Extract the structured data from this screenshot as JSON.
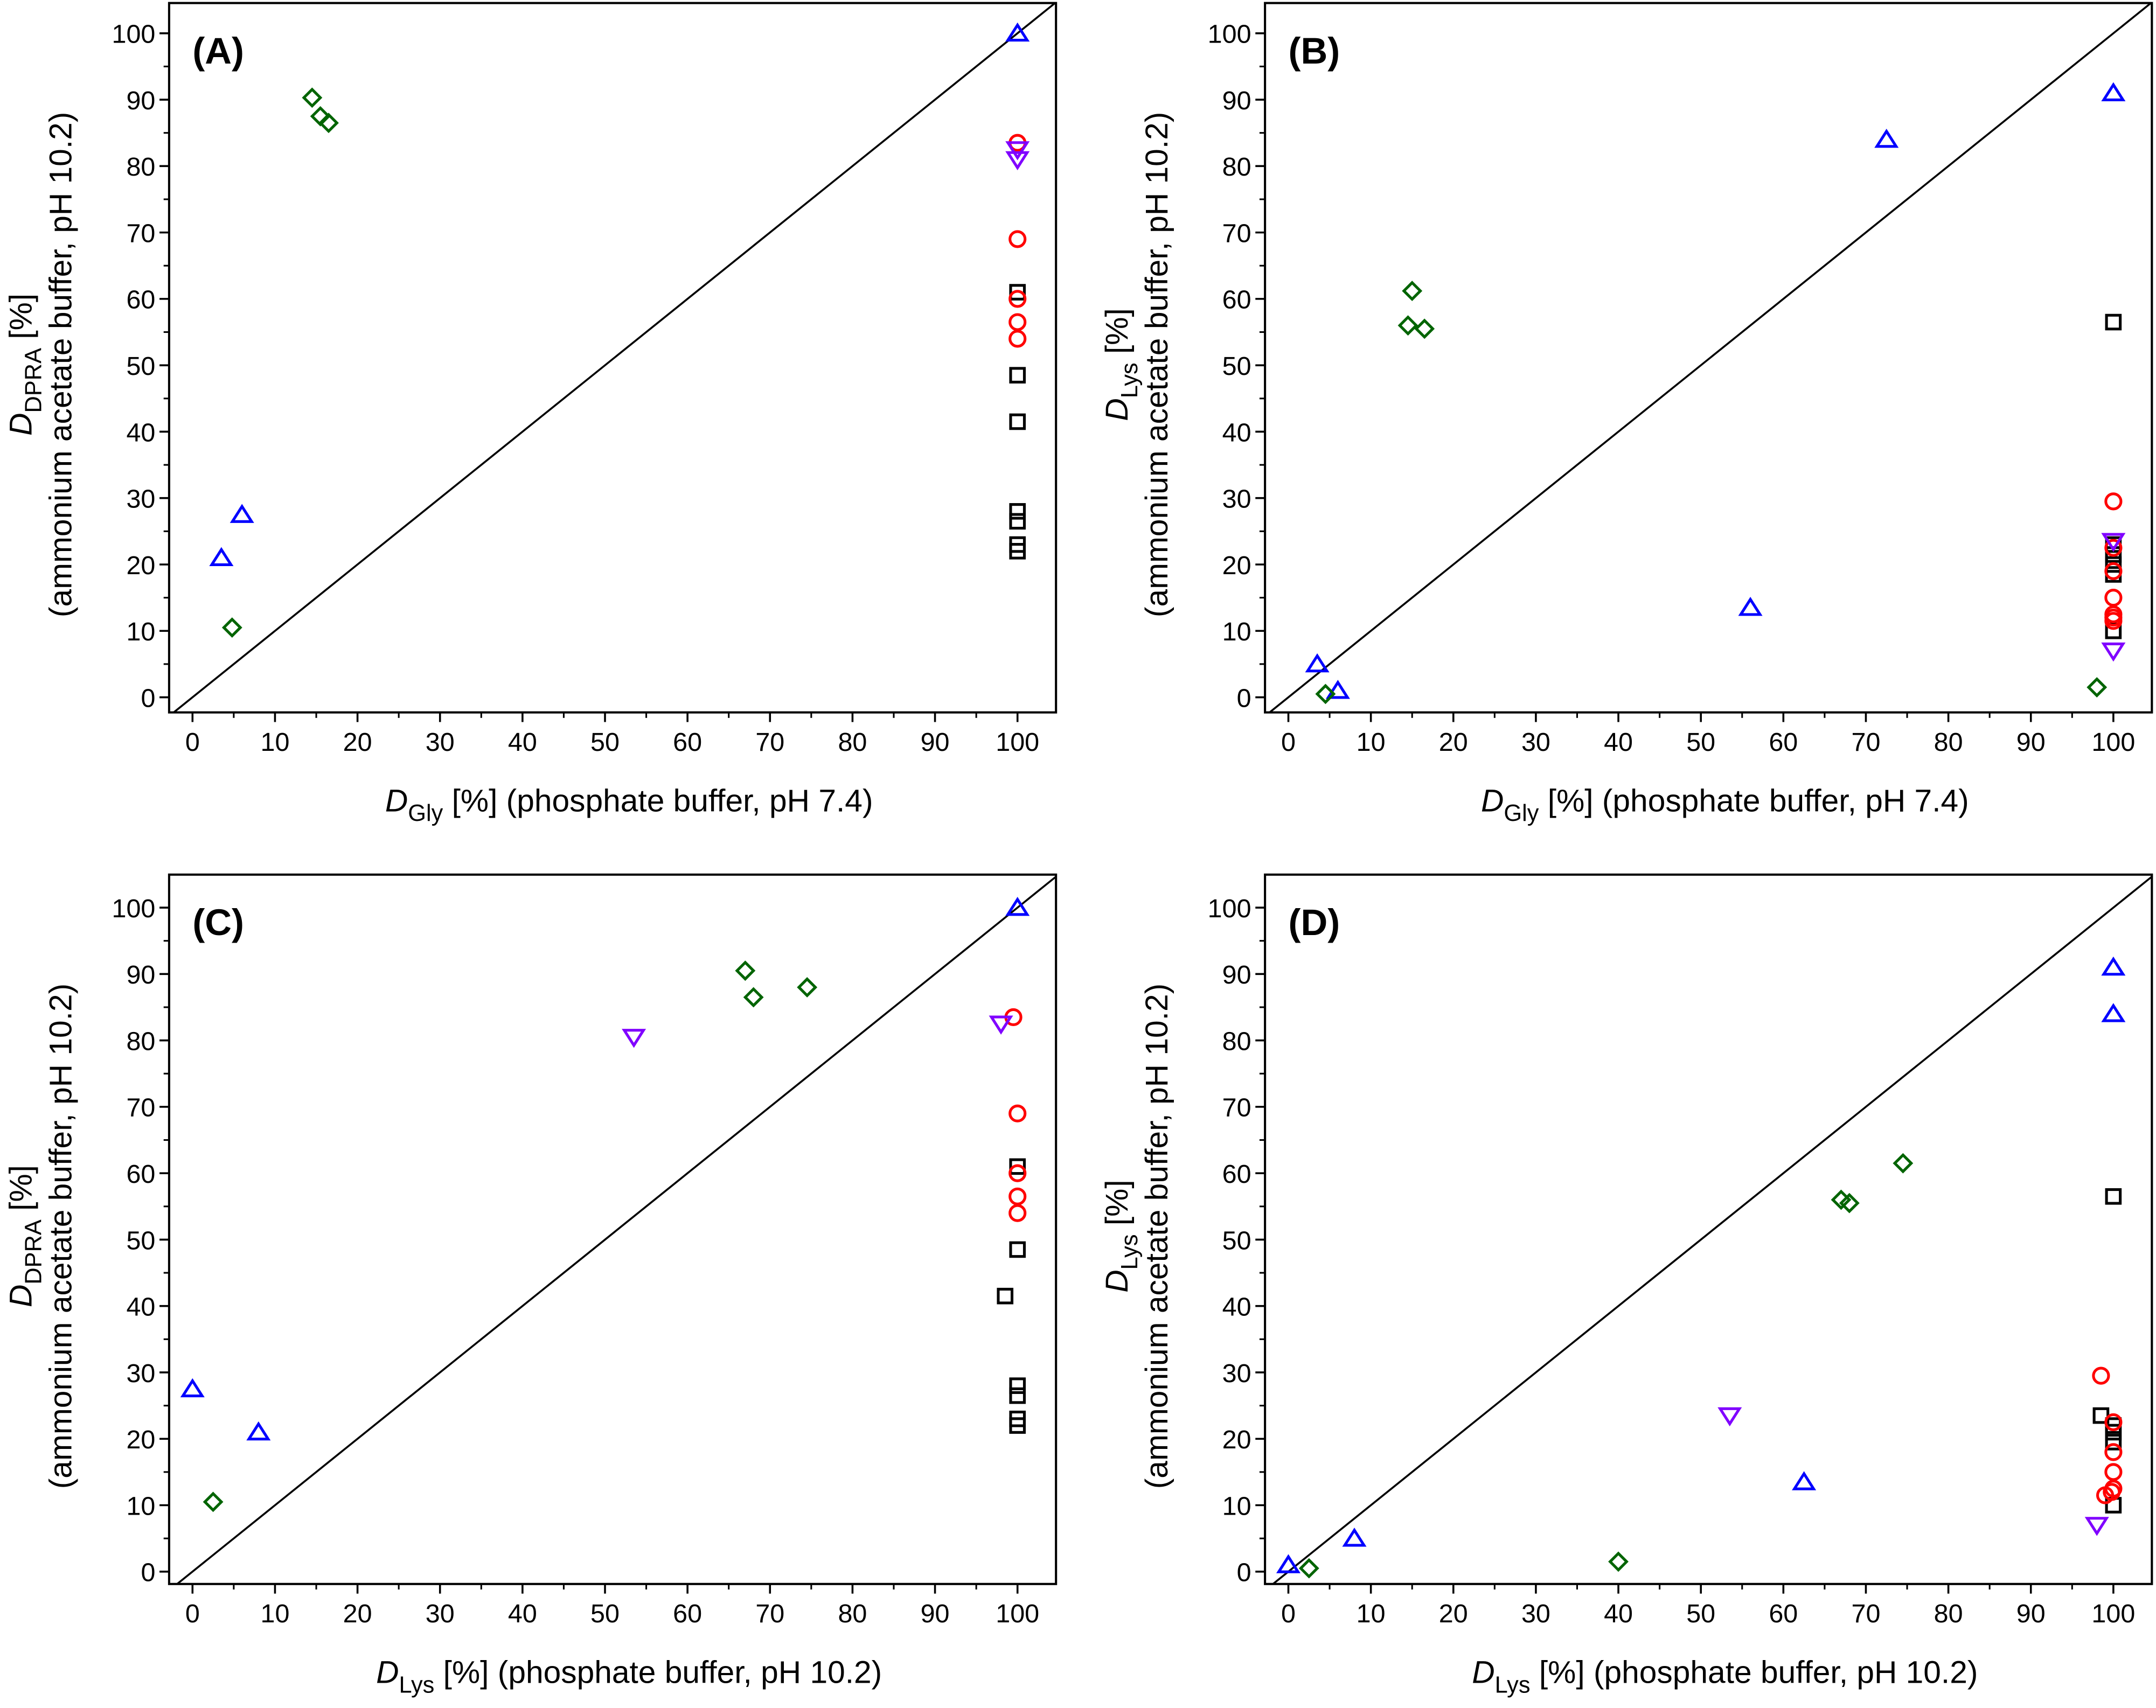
{
  "chart_data": [
    {
      "type": "scatter",
      "panel_label": "(A)",
      "xlabel": {
        "main": "D",
        "sub": "Gly",
        "rest": " [%] (phosphate buffer, pH 7.4)"
      },
      "ylabel": {
        "main": "D",
        "sub": "DPRA",
        "rest": " [%]",
        "line2": "(ammonium acetate buffer, pH 10.2)"
      },
      "xlim": [
        0,
        100
      ],
      "ylim": [
        0,
        100
      ],
      "xticks": [
        "0",
        "10",
        "20",
        "30",
        "40",
        "50",
        "60",
        "70",
        "80",
        "90",
        "100"
      ],
      "yticks": [
        "0",
        "10",
        "20",
        "30",
        "40",
        "50",
        "60",
        "70",
        "80",
        "90",
        "100"
      ],
      "diagonal": true,
      "series": [
        {
          "name": "black-square",
          "marker": "square",
          "color": "#000000",
          "points": [
            [
              100,
              61
            ],
            [
              100,
              48.5
            ],
            [
              100,
              41.5
            ],
            [
              100,
              28
            ],
            [
              100,
              26.5
            ],
            [
              100,
              23
            ],
            [
              100,
              22
            ]
          ]
        },
        {
          "name": "red-circle",
          "marker": "circle",
          "color": "#ff0000",
          "points": [
            [
              100,
              83.5
            ],
            [
              100,
              69
            ],
            [
              100,
              60
            ],
            [
              100,
              56.5
            ],
            [
              100,
              54
            ]
          ]
        },
        {
          "name": "blue-triangle",
          "marker": "triangle-up",
          "color": "#0000ff",
          "points": [
            [
              100,
              100
            ],
            [
              3.5,
              21
            ],
            [
              6,
              27.5
            ]
          ]
        },
        {
          "name": "purple-triangle",
          "marker": "triangle-down",
          "color": "#8000ff",
          "points": [
            [
              100,
              82.5
            ],
            [
              100,
              81
            ]
          ]
        },
        {
          "name": "green-diamond",
          "marker": "diamond",
          "color": "#006400",
          "points": [
            [
              14.5,
              90.3
            ],
            [
              15.5,
              87.5
            ],
            [
              16.5,
              86.5
            ],
            [
              4.8,
              10.5
            ]
          ]
        }
      ]
    },
    {
      "type": "scatter",
      "panel_label": "(B)",
      "xlabel": {
        "main": "D",
        "sub": "Gly",
        "rest": " [%] (phosphate buffer, pH 7.4)"
      },
      "ylabel": {
        "main": "D",
        "sub": "Lys",
        "rest": " [%]",
        "line2": "(ammonium acetate buffer, pH 10.2)"
      },
      "xlim": [
        0,
        100
      ],
      "ylim": [
        0,
        100
      ],
      "xticks": [
        "0",
        "10",
        "20",
        "30",
        "40",
        "50",
        "60",
        "70",
        "80",
        "90",
        "100"
      ],
      "yticks": [
        "0",
        "10",
        "20",
        "30",
        "40",
        "50",
        "60",
        "70",
        "80",
        "90",
        "100"
      ],
      "diagonal": true,
      "series": [
        {
          "name": "black-square",
          "marker": "square",
          "color": "#000000",
          "points": [
            [
              100,
              56.5
            ],
            [
              100,
              23
            ],
            [
              100,
              21.5
            ],
            [
              100,
              20
            ],
            [
              100,
              18.5
            ],
            [
              100,
              10
            ]
          ]
        },
        {
          "name": "red-circle",
          "marker": "circle",
          "color": "#ff0000",
          "points": [
            [
              100,
              29.5
            ],
            [
              100,
              22.5
            ],
            [
              100,
              19
            ],
            [
              100,
              15
            ],
            [
              100,
              12.5
            ],
            [
              100,
              12
            ],
            [
              100,
              11.5
            ]
          ]
        },
        {
          "name": "blue-triangle",
          "marker": "triangle-up",
          "color": "#0000ff",
          "points": [
            [
              100,
              91
            ],
            [
              72.5,
              84
            ],
            [
              56,
              13.5
            ],
            [
              3.5,
              5
            ],
            [
              6,
              1
            ]
          ]
        },
        {
          "name": "purple-triangle",
          "marker": "triangle-down",
          "color": "#8000ff",
          "points": [
            [
              100,
              23.5
            ],
            [
              100,
              7
            ]
          ]
        },
        {
          "name": "green-diamond",
          "marker": "diamond",
          "color": "#006400",
          "points": [
            [
              15,
              61.2
            ],
            [
              14.5,
              56
            ],
            [
              16.5,
              55.5
            ],
            [
              4.5,
              0.5
            ],
            [
              98,
              1.5
            ]
          ]
        }
      ]
    },
    {
      "type": "scatter",
      "panel_label": "(C)",
      "xlabel": {
        "main": "D",
        "sub": "Lys",
        "rest": " [%] (phosphate buffer, pH 10.2)"
      },
      "ylabel": {
        "main": "D",
        "sub": "DPRA",
        "rest": " [%]",
        "line2": "(ammonium acetate buffer, pH 10.2)"
      },
      "xlim": [
        0,
        100
      ],
      "ylim": [
        0,
        100
      ],
      "xticks": [
        "0",
        "10",
        "20",
        "30",
        "40",
        "50",
        "60",
        "70",
        "80",
        "90",
        "100"
      ],
      "yticks": [
        "0",
        "10",
        "20",
        "30",
        "40",
        "50",
        "60",
        "70",
        "80",
        "90",
        "100"
      ],
      "diagonal": true,
      "series": [
        {
          "name": "black-square",
          "marker": "square",
          "color": "#000000",
          "points": [
            [
              100,
              61
            ],
            [
              100,
              48.5
            ],
            [
              98.5,
              41.5
            ],
            [
              100,
              28
            ],
            [
              100,
              26.5
            ],
            [
              100,
              23
            ],
            [
              100,
              22
            ]
          ]
        },
        {
          "name": "red-circle",
          "marker": "circle",
          "color": "#ff0000",
          "points": [
            [
              99.5,
              83.5
            ],
            [
              100,
              69
            ],
            [
              100,
              60
            ],
            [
              100,
              56.5
            ],
            [
              100,
              54
            ]
          ]
        },
        {
          "name": "blue-triangle",
          "marker": "triangle-up",
          "color": "#0000ff",
          "points": [
            [
              100,
              100
            ],
            [
              0,
              27.5
            ],
            [
              8,
              21
            ]
          ]
        },
        {
          "name": "purple-triangle",
          "marker": "triangle-down",
          "color": "#8000ff",
          "points": [
            [
              53.5,
              80.5
            ],
            [
              98,
              82.5
            ]
          ]
        },
        {
          "name": "green-diamond",
          "marker": "diamond",
          "color": "#006400",
          "points": [
            [
              67,
              90.5
            ],
            [
              68,
              86.5
            ],
            [
              74.5,
              88
            ],
            [
              2.5,
              10.5
            ]
          ]
        }
      ]
    },
    {
      "type": "scatter",
      "panel_label": "(D)",
      "xlabel": {
        "main": "D",
        "sub": "Lys",
        "rest": " [%] (phosphate buffer, pH 10.2)"
      },
      "ylabel": {
        "main": "D",
        "sub": "Lys",
        "rest": " [%]",
        "line2": "(ammonium acetate buffer, pH 10.2)"
      },
      "xlim": [
        0,
        100
      ],
      "ylim": [
        0,
        100
      ],
      "xticks": [
        "0",
        "10",
        "20",
        "30",
        "40",
        "50",
        "60",
        "70",
        "80",
        "90",
        "100"
      ],
      "yticks": [
        "0",
        "10",
        "20",
        "30",
        "40",
        "50",
        "60",
        "70",
        "80",
        "90",
        "100"
      ],
      "diagonal": true,
      "series": [
        {
          "name": "black-square",
          "marker": "square",
          "color": "#000000",
          "points": [
            [
              100,
              56.5
            ],
            [
              98.5,
              23.5
            ],
            [
              100,
              22
            ],
            [
              100,
              21
            ],
            [
              100,
              19.5
            ],
            [
              100,
              10
            ]
          ]
        },
        {
          "name": "red-circle",
          "marker": "circle",
          "color": "#ff0000",
          "points": [
            [
              98.5,
              29.5
            ],
            [
              100,
              22.5
            ],
            [
              100,
              18
            ],
            [
              100,
              15
            ],
            [
              100,
              12.5
            ],
            [
              99,
              11.5
            ],
            [
              99.8,
              12
            ]
          ]
        },
        {
          "name": "blue-triangle",
          "marker": "triangle-up",
          "color": "#0000ff",
          "points": [
            [
              100,
              91
            ],
            [
              100,
              84
            ],
            [
              62.5,
              13.5
            ],
            [
              8,
              5
            ],
            [
              0,
              1
            ]
          ]
        },
        {
          "name": "purple-triangle",
          "marker": "triangle-down",
          "color": "#8000ff",
          "points": [
            [
              53.5,
              23.5
            ],
            [
              98,
              7
            ]
          ]
        },
        {
          "name": "green-diamond",
          "marker": "diamond",
          "color": "#006400",
          "points": [
            [
              74.5,
              61.5
            ],
            [
              67,
              56
            ],
            [
              68,
              55.5
            ],
            [
              2.5,
              0.5
            ],
            [
              40,
              1.5
            ]
          ]
        }
      ]
    }
  ]
}
